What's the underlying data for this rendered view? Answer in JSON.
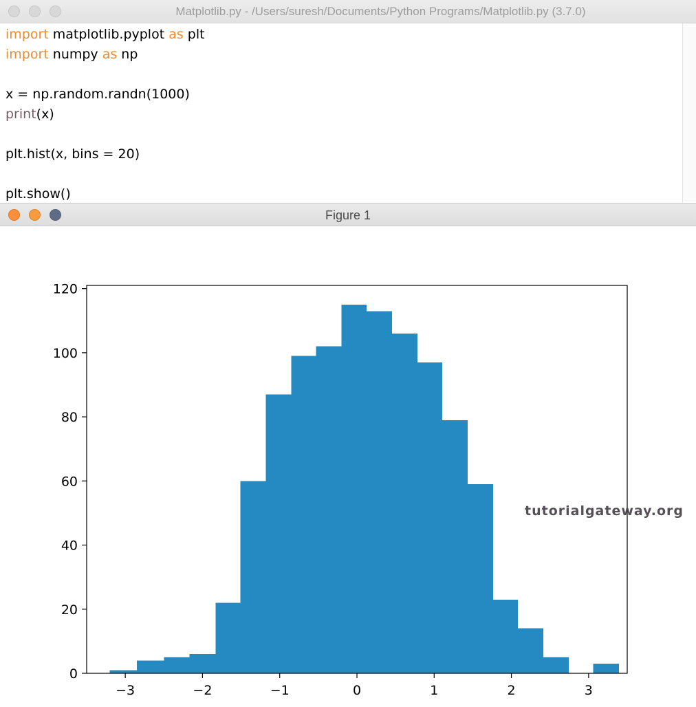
{
  "editor": {
    "title": "Matplotlib.py - /Users/suresh/Documents/Python Programs/Matplotlib.py (3.7.0)",
    "code": {
      "line1": {
        "kw1": "import",
        "t1": " matplotlib.pyplot ",
        "kw2": "as",
        "t2": " plt"
      },
      "line2": {
        "kw1": "import",
        "t1": " numpy ",
        "kw2": "as",
        "t2": " np"
      },
      "line4": {
        "t1": "x = np.random.randn(1000)"
      },
      "line5": {
        "bi": "print",
        "t1": "(x)"
      },
      "line7": {
        "t1": "plt.hist(x, bins = 20)"
      },
      "line9": {
        "t1": "plt.show()"
      }
    },
    "colors": {
      "keyword": "#ef8b2f",
      "builtin": "#7a5a66"
    }
  },
  "figure": {
    "title": "Figure 1",
    "watermark": "tutorialgateway.org",
    "traffic_lights": [
      "#fb8f3a",
      "#f79b3c",
      "#5f6c85"
    ]
  },
  "chart_data": {
    "type": "bar",
    "bin_edges": [
      -3.2,
      -2.85,
      -2.5,
      -2.17,
      -1.83,
      -1.51,
      -1.18,
      -0.85,
      -0.53,
      -0.2,
      0.12,
      0.45,
      0.78,
      1.1,
      1.43,
      1.76,
      2.08,
      2.41,
      2.74,
      3.06,
      3.39
    ],
    "values": [
      1,
      4,
      5,
      6,
      22,
      60,
      87,
      99,
      102,
      115,
      113,
      106,
      97,
      79,
      59,
      23,
      14,
      5,
      0,
      3
    ],
    "xlim": [
      -3.5,
      3.5
    ],
    "ylim": [
      0,
      121
    ],
    "xticks": [
      -3,
      -2,
      -1,
      0,
      1,
      2,
      3
    ],
    "xtick_labels": [
      "−3",
      "−2",
      "−1",
      "0",
      "1",
      "2",
      "3"
    ],
    "yticks": [
      0,
      20,
      40,
      60,
      80,
      100,
      120
    ],
    "ytick_labels": [
      "0",
      "20",
      "40",
      "60",
      "80",
      "100",
      "120"
    ],
    "bar_color": "#2589c2",
    "grid": false,
    "title": "",
    "xlabel": "",
    "ylabel": ""
  }
}
